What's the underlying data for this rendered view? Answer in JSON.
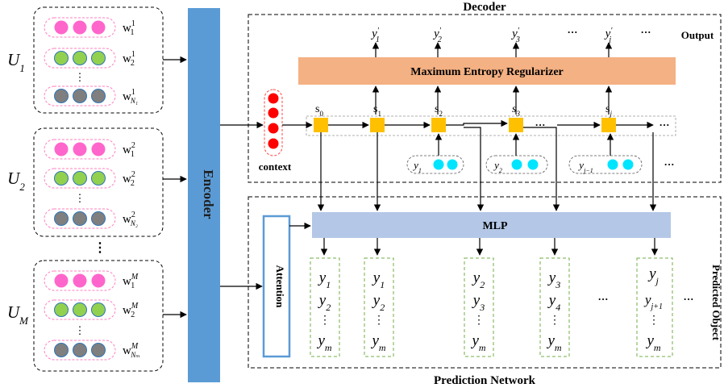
{
  "decoder": {
    "title": "Decoder",
    "output_label": "Output",
    "regularizer_label": "Maximum Entropy Regularizer",
    "context_label": "context",
    "states": [
      {
        "sym": "s",
        "sub": "0"
      },
      {
        "sym": "s",
        "sub": "1"
      },
      {
        "sym": "s",
        "sub": "2"
      },
      {
        "sym": "s",
        "sub": "3"
      },
      {
        "sym": "s",
        "sub": "j"
      }
    ],
    "outputs": [
      {
        "sym": "y",
        "sub": "1"
      },
      {
        "sym": "y",
        "sub": "2"
      },
      {
        "sym": "y",
        "sub": "3"
      },
      {
        "sym": "y",
        "sub": "j"
      }
    ],
    "prime_mark": "′",
    "input_tokens": [
      {
        "sym": "y",
        "sub": "1"
      },
      {
        "sym": "y",
        "sub": "2"
      },
      {
        "sym": "y",
        "sub": "j−1"
      }
    ],
    "ellipsis": "···"
  },
  "encoder": {
    "label": "Encoder",
    "utterances": [
      {
        "name": {
          "sym": "U",
          "sub": "1"
        },
        "words": [
          {
            "sym": "w",
            "sub": "1",
            "sup": "1"
          },
          {
            "sym": "w",
            "sub": "2",
            "sup": "1"
          },
          {
            "sym": "w",
            "sub": "N₁",
            "sup": "1"
          }
        ]
      },
      {
        "name": {
          "sym": "U",
          "sub": "2"
        },
        "words": [
          {
            "sym": "w",
            "sub": "1",
            "sup": "2"
          },
          {
            "sym": "w",
            "sub": "2",
            "sup": "2"
          },
          {
            "sym": "w",
            "sub": "N₂",
            "sup": "2"
          }
        ]
      },
      {
        "name": {
          "sym": "U",
          "sub": "M"
        },
        "words": [
          {
            "sym": "w",
            "sub": "1",
            "sup": "M"
          },
          {
            "sym": "w",
            "sub": "2",
            "sup": "M"
          },
          {
            "sym": "w",
            "sub": "Nₘ",
            "sup": "M"
          }
        ]
      }
    ],
    "vdots": "⋮"
  },
  "prediction": {
    "title": "Prediction Network",
    "mlp_label": "MLP",
    "attention_label": "Attention",
    "predicted_object_label": "Predicted Object",
    "columns": [
      [
        {
          "sym": "y",
          "sub": "1"
        },
        {
          "sym": "y",
          "sub": "2"
        },
        {
          "sym": "⋮",
          "sub": ""
        },
        {
          "sym": "y",
          "sub": "m"
        }
      ],
      [
        {
          "sym": "y",
          "sub": "1"
        },
        {
          "sym": "y",
          "sub": "2"
        },
        {
          "sym": "⋮",
          "sub": ""
        },
        {
          "sym": "y",
          "sub": "m"
        }
      ],
      [
        {
          "sym": "y",
          "sub": "2"
        },
        {
          "sym": "y",
          "sub": "3"
        },
        {
          "sym": "⋮",
          "sub": ""
        },
        {
          "sym": "y",
          "sub": "m"
        }
      ],
      [
        {
          "sym": "y",
          "sub": "3"
        },
        {
          "sym": "y",
          "sub": "4"
        },
        {
          "sym": "⋮",
          "sub": ""
        },
        {
          "sym": "y",
          "sub": "m"
        }
      ],
      [
        {
          "sym": "y",
          "sub": "j"
        },
        {
          "sym": "y",
          "sub": "j+1"
        },
        {
          "sym": "⋮",
          "sub": ""
        },
        {
          "sym": "y",
          "sub": "m"
        }
      ]
    ],
    "ellipsis": "···"
  },
  "colors": {
    "encoder_blue": "#5b9bd5",
    "mlp_fill": "#b4c7e7",
    "regularizer_fill": "#f4b183",
    "state_fill": "#ffc000",
    "pink": "#ff66cc",
    "green": "#92d050",
    "gray": "#7f7f7f",
    "red": "#ff0000",
    "cyan": "#00e5ff",
    "green_dash": "#70ad47",
    "pink_dash": "#ff7fbf"
  }
}
